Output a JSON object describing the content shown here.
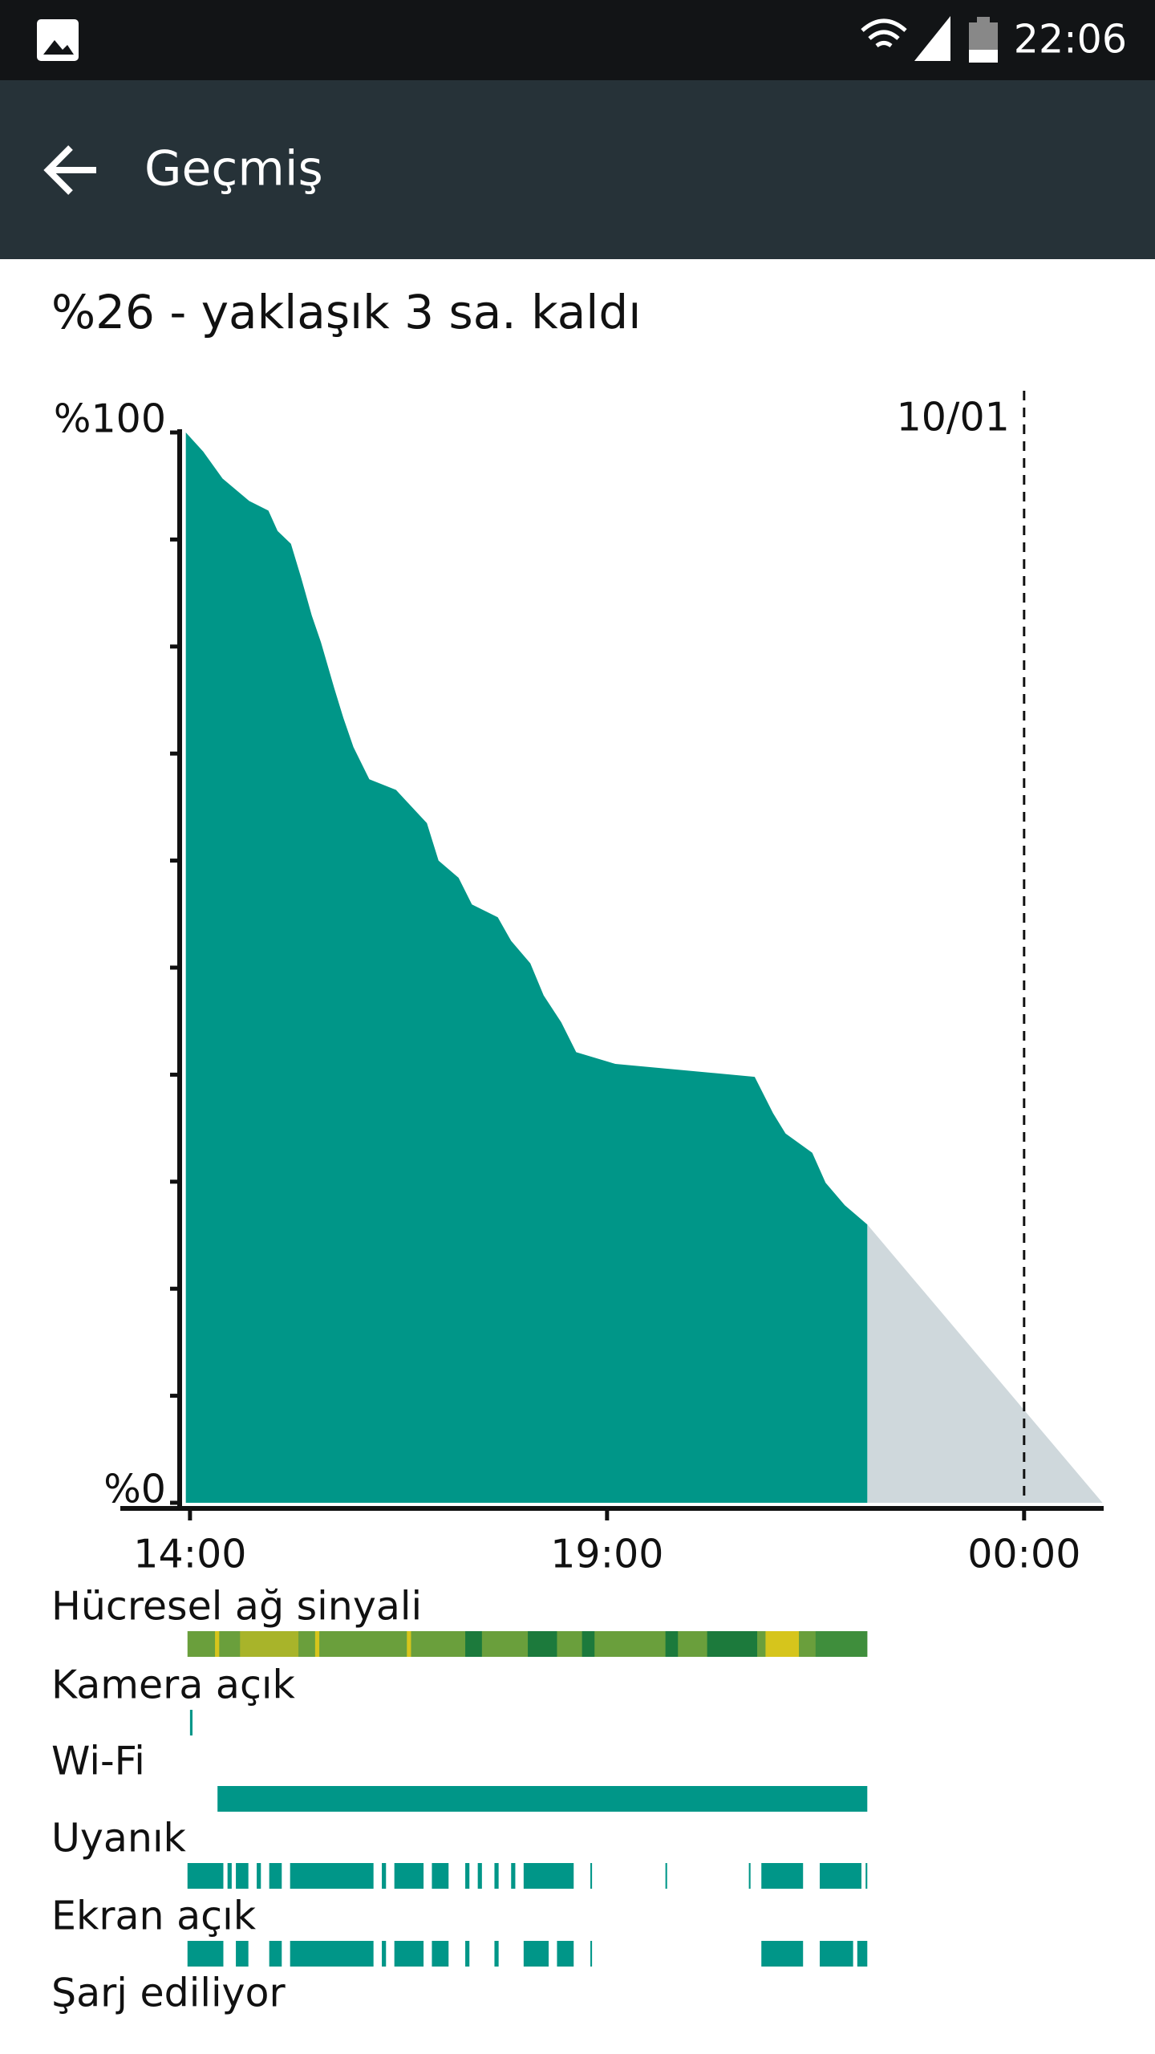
{
  "status_bar": {
    "time": "22:06"
  },
  "app_bar": {
    "title": "Geçmiş"
  },
  "summary": "%26 - yaklaşık 3 sa. kaldı",
  "chart_data": {
    "type": "area",
    "x": [
      13.95,
      14.16,
      14.39,
      14.71,
      14.94,
      15.05,
      15.21,
      15.33,
      15.46,
      15.57,
      15.73,
      15.84,
      15.96,
      16.15,
      16.47,
      16.84,
      16.98,
      17.22,
      17.38,
      17.69,
      17.85,
      18.08,
      18.24,
      18.45,
      18.63,
      19.1,
      20.77,
      20.99,
      21.14,
      21.46,
      21.62,
      21.85,
      22.12
    ],
    "values": [
      100,
      98.2,
      95.7,
      93.6,
      92.7,
      90.8,
      89.6,
      86.5,
      82.9,
      80.4,
      76.1,
      73.3,
      70.6,
      67.6,
      66.6,
      63.5,
      60,
      58.4,
      55.9,
      54.7,
      52.5,
      50.4,
      47.4,
      44.9,
      42.1,
      41,
      39.8,
      36.4,
      34.5,
      32.7,
      29.9,
      27.8,
      26
    ],
    "color": "#009688",
    "prediction": {
      "x": [
        22.12,
        24.94
      ],
      "values": [
        26,
        0
      ],
      "color": "#cfd8dc"
    },
    "xlim": [
      13.28,
      25.05
    ],
    "ylim": [
      0,
      100
    ],
    "xticks": [
      {
        "value": 14,
        "label": "14:00"
      },
      {
        "value": 19,
        "label": "19:00"
      },
      {
        "value": 24,
        "label": "00:00"
      }
    ],
    "yticks": [
      {
        "value": 0,
        "label": "%0"
      },
      {
        "value": 100,
        "label": "%100"
      }
    ],
    "yminor": [
      10,
      20,
      30,
      40,
      50,
      60,
      70,
      80,
      90
    ],
    "marker": {
      "value": 24,
      "label": "10/01"
    }
  },
  "rows": [
    {
      "label": "Hücresel ağ sinyali",
      "color": "#6a9f3c",
      "segments": [
        {
          "x": [
            13.97,
            22.12
          ]
        },
        {
          "x": [
            14.3,
            14.35
          ],
          "color": "#d6c51c"
        },
        {
          "x": [
            14.6,
            15.3
          ],
          "color": "#a8b42a"
        },
        {
          "x": [
            15.5,
            15.55
          ],
          "color": "#d6c51c"
        },
        {
          "x": [
            16.6,
            16.65
          ],
          "color": "#d6c51c"
        },
        {
          "x": [
            17.3,
            17.5
          ],
          "color": "#1c7a3c"
        },
        {
          "x": [
            18.05,
            18.4
          ],
          "color": "#1c7a3c"
        },
        {
          "x": [
            18.7,
            18.85
          ],
          "color": "#1c7a3c"
        },
        {
          "x": [
            19.7,
            19.85
          ],
          "color": "#1c7a3c"
        },
        {
          "x": [
            20.2,
            20.8
          ],
          "color": "#1c7a3c"
        },
        {
          "x": [
            20.9,
            21.3
          ],
          "color": "#d6c51c"
        },
        {
          "x": [
            21.5,
            22.12
          ],
          "color": "#3f8e3c"
        }
      ]
    },
    {
      "label": "Kamera açık",
      "color": "#009688",
      "segments": [
        {
          "x": [
            14.0,
            14.03
          ]
        }
      ]
    },
    {
      "label": "Wi-Fi",
      "color": "#009688",
      "segments": [
        {
          "x": [
            14.33,
            22.12
          ]
        }
      ]
    },
    {
      "label": "Uyanık",
      "color": "#009688",
      "segments": [
        {
          "x": [
            13.97,
            14.4
          ]
        },
        {
          "x": [
            14.45,
            14.5
          ]
        },
        {
          "x": [
            14.55,
            14.7
          ]
        },
        {
          "x": [
            14.8,
            14.85
          ]
        },
        {
          "x": [
            14.95,
            15.1
          ]
        },
        {
          "x": [
            15.2,
            16.2
          ]
        },
        {
          "x": [
            16.3,
            16.35
          ]
        },
        {
          "x": [
            16.45,
            16.8
          ]
        },
        {
          "x": [
            16.9,
            17.1
          ]
        },
        {
          "x": [
            17.3,
            17.35
          ]
        },
        {
          "x": [
            17.45,
            17.5
          ]
        },
        {
          "x": [
            17.65,
            17.7
          ]
        },
        {
          "x": [
            17.85,
            17.9
          ]
        },
        {
          "x": [
            18.0,
            18.6
          ]
        },
        {
          "x": [
            18.8,
            18.82
          ]
        },
        {
          "x": [
            19.7,
            19.72
          ]
        },
        {
          "x": [
            20.7,
            20.72
          ]
        },
        {
          "x": [
            20.85,
            21.35
          ]
        },
        {
          "x": [
            21.55,
            22.05
          ]
        },
        {
          "x": [
            22.1,
            22.12
          ]
        }
      ]
    },
    {
      "label": "Ekran açık",
      "color": "#009688",
      "segments": [
        {
          "x": [
            13.97,
            14.4
          ]
        },
        {
          "x": [
            14.55,
            14.7
          ]
        },
        {
          "x": [
            14.95,
            15.1
          ]
        },
        {
          "x": [
            15.2,
            16.2
          ]
        },
        {
          "x": [
            16.3,
            16.35
          ]
        },
        {
          "x": [
            16.45,
            16.8
          ]
        },
        {
          "x": [
            16.9,
            17.1
          ]
        },
        {
          "x": [
            17.3,
            17.35
          ]
        },
        {
          "x": [
            17.65,
            17.7
          ]
        },
        {
          "x": [
            18.0,
            18.3
          ]
        },
        {
          "x": [
            18.4,
            18.6
          ]
        },
        {
          "x": [
            18.8,
            18.82
          ]
        },
        {
          "x": [
            20.85,
            21.35
          ]
        },
        {
          "x": [
            21.55,
            21.95
          ]
        },
        {
          "x": [
            22.0,
            22.12
          ]
        }
      ]
    },
    {
      "label": "Şarj ediliyor",
      "color": "#009688",
      "segments": []
    }
  ]
}
